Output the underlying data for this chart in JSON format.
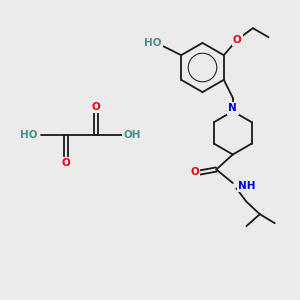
{
  "background_color": "#ebebeb",
  "bond_color": "#1a1a1a",
  "o_color": "#e8000d",
  "n_color": "#0000cd",
  "h_color": "#4a9090",
  "figsize": [
    3.0,
    3.0
  ],
  "dpi": 100,
  "xlim": [
    0,
    10
  ],
  "ylim": [
    0,
    10
  ],
  "bond_lw": 1.3,
  "font_size": 7.5
}
